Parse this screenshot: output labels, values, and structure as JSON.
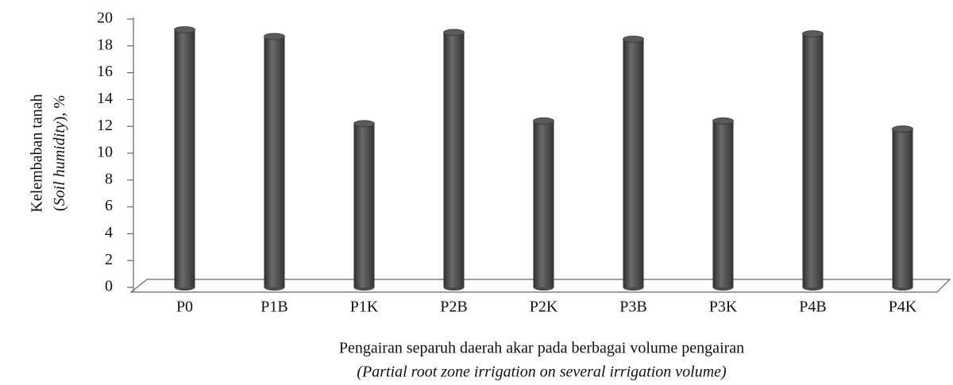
{
  "chart_data": {
    "type": "bar",
    "y_label": [
      "Kelembaban tanah",
      [
        "(",
        "Soil humidity",
        "), %"
      ]
    ],
    "x_label": [
      "Pengairan separuh daerah akar pada berbagai volume pengairan",
      "(Partial root zone irrigation on several irrigation volume)"
    ],
    "categories": [
      "P0",
      "P1B",
      "P1K",
      "P2B",
      "P2K",
      "P3B",
      "P3K",
      "P4B",
      "P4K"
    ],
    "values": [
      19.2,
      18.7,
      12.2,
      19.0,
      12.4,
      18.5,
      12.4,
      18.9,
      11.8
    ],
    "color": "#4a4a4a",
    "ylim": [
      0,
      20
    ],
    "yticks": [
      0,
      2,
      4,
      6,
      8,
      10,
      12,
      14,
      16,
      18,
      20
    ],
    "grid": false
  }
}
